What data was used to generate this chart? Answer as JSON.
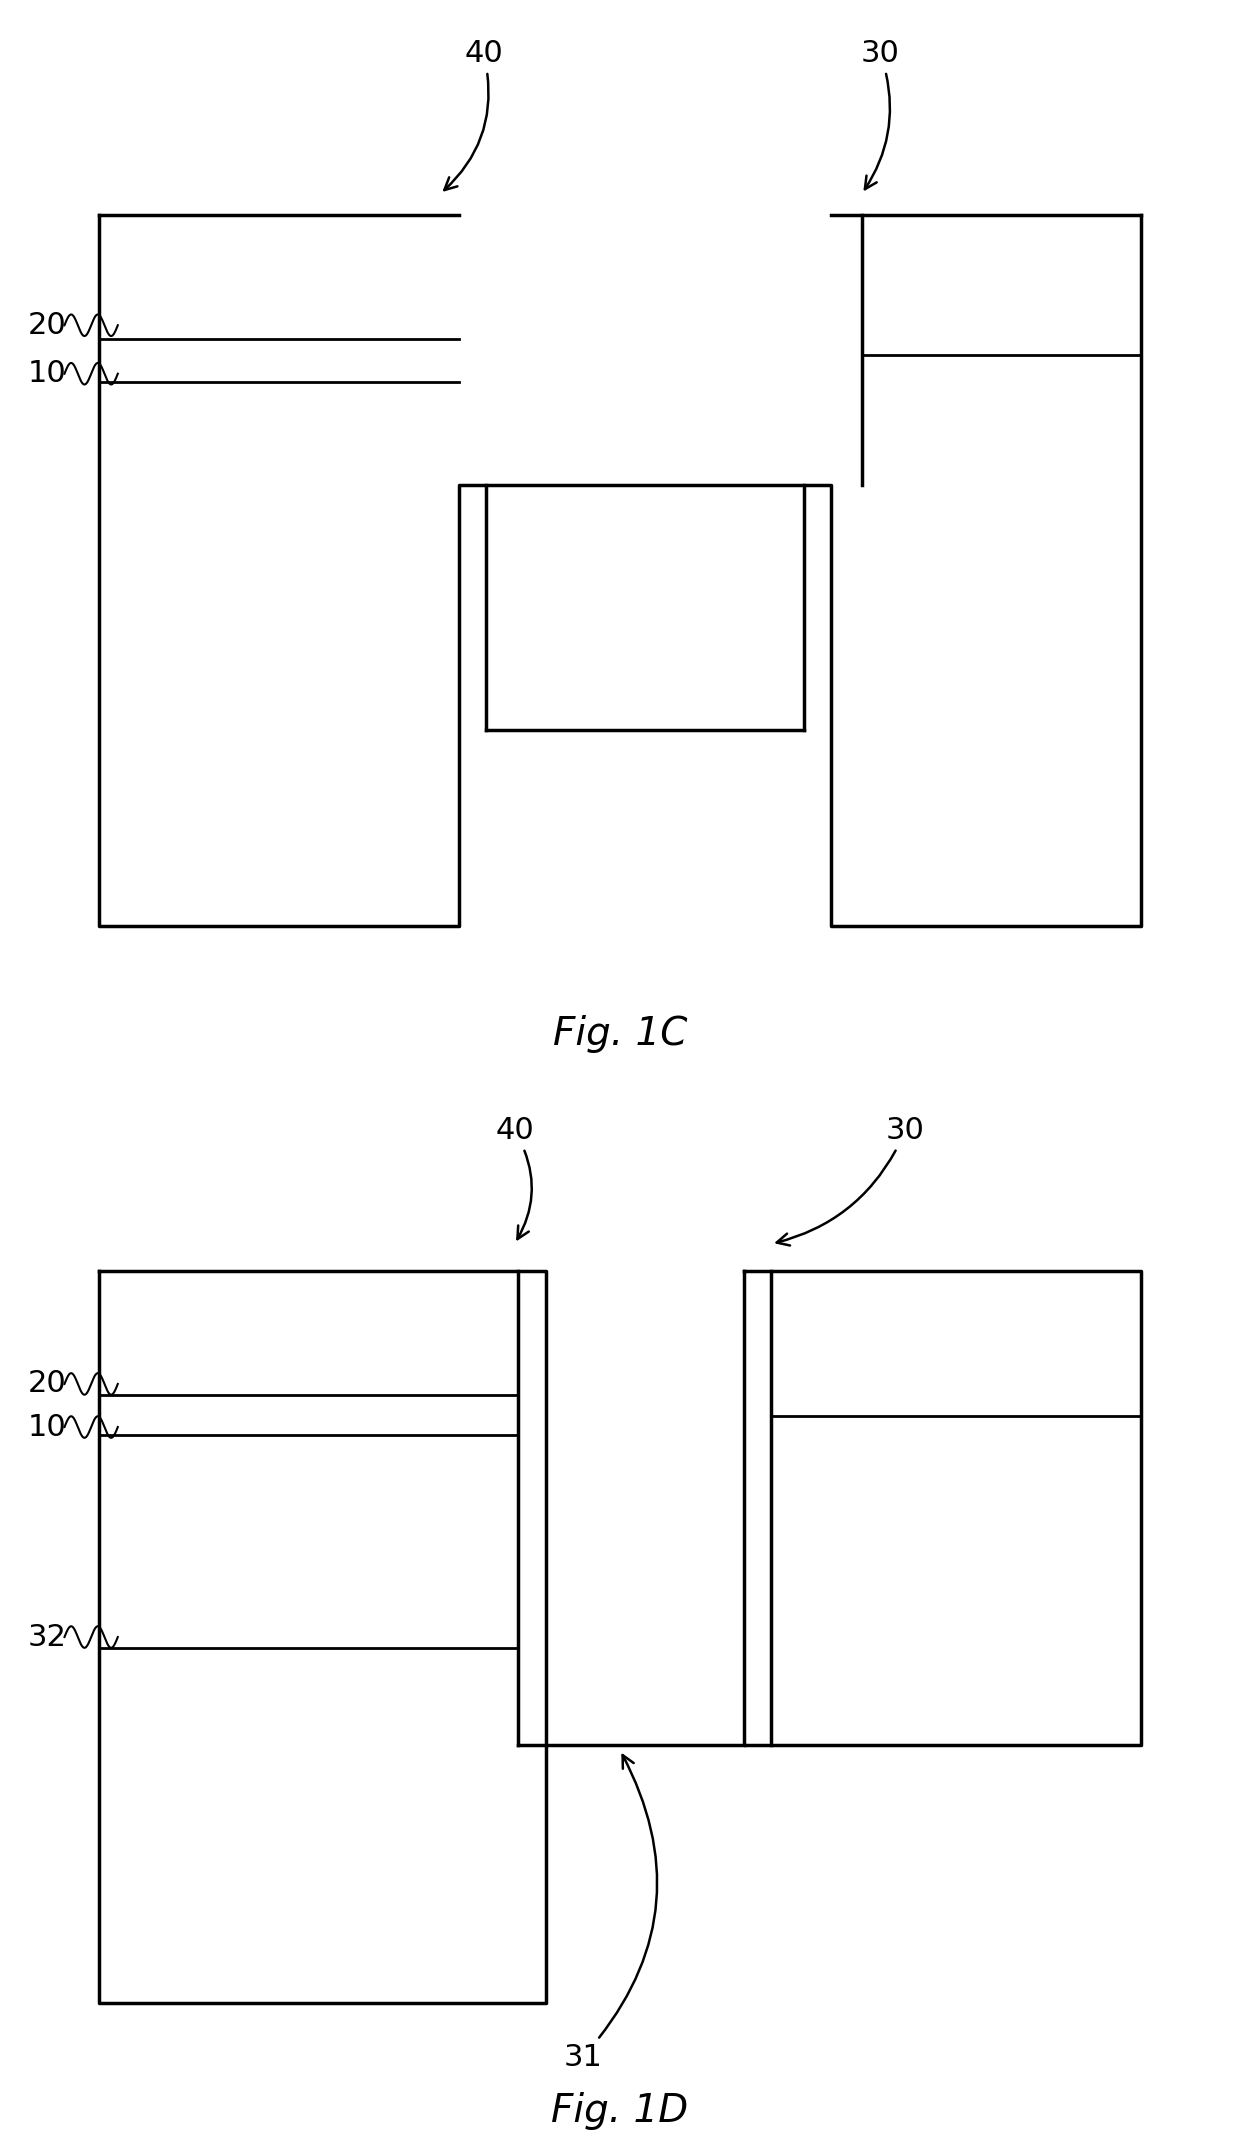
{
  "fig_width": 12.4,
  "fig_height": 21.54,
  "bg_color": "#ffffff",
  "line_color": "#000000",
  "line_width": 2.5,
  "fig1c": {
    "title": "Fig. 1C",
    "title_fontsize": 28
  },
  "fig1d": {
    "title": "Fig. 1D",
    "title_fontsize": 28
  }
}
